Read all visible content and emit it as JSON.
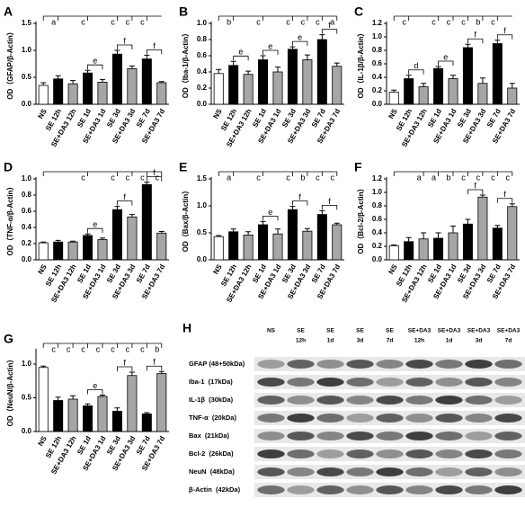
{
  "chart_data": [
    {
      "type": "bar",
      "panel": "A",
      "ylabel": "OD（GFAP/β-Actin）",
      "categories": [
        "NS",
        "SE 12h",
        "SE+DA3 12h",
        "SE 1d",
        "SE+DA3 1d",
        "SE 3d",
        "SE+DA3 3d",
        "SE 7d",
        "SE+DA3 7d"
      ],
      "values": [
        0.35,
        0.47,
        0.38,
        0.58,
        0.41,
        0.93,
        0.66,
        0.84,
        0.4
      ],
      "errors": [
        0.05,
        0.06,
        0.06,
        0.05,
        0.05,
        0.07,
        0.05,
        0.07,
        0.02
      ],
      "colors": [
        "#ffffff",
        "#000000",
        "#a6a6a6",
        "#000000",
        "#a6a6a6",
        "#000000",
        "#a6a6a6",
        "#000000",
        "#a6a6a6"
      ],
      "ylim": [
        0,
        1.5
      ],
      "yticks": [
        {
          "value": 0,
          "label": "0.0"
        },
        0.5,
        {
          "value": 1,
          "label": "1.0"
        },
        1.5
      ],
      "letters": [
        null,
        "a",
        null,
        "c",
        null,
        "c",
        "c",
        "c",
        null
      ],
      "brackets": [
        {
          "from": 3,
          "to": 4,
          "label": "e"
        },
        {
          "from": 5,
          "to": 6,
          "label": "f"
        },
        {
          "from": 7,
          "to": 8,
          "label": "f"
        }
      ]
    },
    {
      "type": "bar",
      "panel": "B",
      "ylabel": "OD（Iba-1/β-Actin）",
      "categories": [
        "NS",
        "SE 12h",
        "SE+DA3 12h",
        "SE 1d",
        "SE+DA3 1d",
        "SE 3d",
        "SE+DA3 3d",
        "SE 7d",
        "SE+DA3 7d"
      ],
      "values": [
        0.38,
        0.48,
        0.37,
        0.55,
        0.4,
        0.68,
        0.55,
        0.8,
        0.47
      ],
      "errors": [
        0.05,
        0.05,
        0.04,
        0.05,
        0.06,
        0.03,
        0.06,
        0.06,
        0.04
      ],
      "colors": [
        "#ffffff",
        "#000000",
        "#a6a6a6",
        "#000000",
        "#a6a6a6",
        "#000000",
        "#a6a6a6",
        "#000000",
        "#a6a6a6"
      ],
      "ylim": [
        0,
        1
      ],
      "yticks": [
        {
          "value": 0,
          "label": "0.0"
        },
        0.2,
        0.4,
        0.6,
        0.8,
        {
          "value": 1,
          "label": "1.0"
        }
      ],
      "letters": [
        null,
        "b",
        null,
        "c",
        null,
        "c",
        "c",
        "c",
        "a"
      ],
      "brackets": [
        {
          "from": 1,
          "to": 2,
          "label": "e"
        },
        {
          "from": 3,
          "to": 4,
          "label": "e"
        },
        {
          "from": 5,
          "to": 6,
          "label": "e"
        },
        {
          "from": 7,
          "to": 8,
          "label": "f"
        }
      ]
    },
    {
      "type": "bar",
      "panel": "C",
      "ylabel": "OD（IL-1β/β-Actin）",
      "categories": [
        "NS",
        "SE 12h",
        "SE+DA3 12h",
        "SE 1d",
        "SE+DA3 1d",
        "SE 3d",
        "SE+DA3 3d",
        "SE 7d",
        "SE+DA3 7d"
      ],
      "values": [
        0.18,
        0.38,
        0.26,
        0.53,
        0.38,
        0.84,
        0.31,
        0.9,
        0.24
      ],
      "errors": [
        0.03,
        0.05,
        0.05,
        0.03,
        0.05,
        0.05,
        0.08,
        0.05,
        0.07
      ],
      "colors": [
        "#ffffff",
        "#000000",
        "#a6a6a6",
        "#000000",
        "#a6a6a6",
        "#000000",
        "#a6a6a6",
        "#000000",
        "#a6a6a6"
      ],
      "ylim": [
        0,
        1.2
      ],
      "yticks": [
        {
          "value": 0,
          "label": "0.0"
        },
        0.2,
        0.4,
        0.6,
        0.8,
        {
          "value": 1,
          "label": "1.0"
        },
        1.2
      ],
      "letters": [
        null,
        "c",
        null,
        "c",
        "c",
        "c",
        "b",
        "c",
        null
      ],
      "brackets": [
        {
          "from": 1,
          "to": 2,
          "label": "d"
        },
        {
          "from": 3,
          "to": 4,
          "label": "e"
        },
        {
          "from": 5,
          "to": 6,
          "label": "f"
        },
        {
          "from": 7,
          "to": 8,
          "label": "f"
        }
      ]
    },
    {
      "type": "bar",
      "panel": "D",
      "ylabel": "OD（TNF-α/β-Actin）",
      "categories": [
        "NS",
        "SE 12h",
        "SE+DA3 12h",
        "SE 1d",
        "SE+DA3 1d",
        "SE 3d",
        "SE+DA3 3d",
        "SE 7d",
        "SE+DA3 7d"
      ],
      "values": [
        0.21,
        0.22,
        0.22,
        0.3,
        0.25,
        0.62,
        0.53,
        0.93,
        0.33
      ],
      "errors": [
        0.01,
        0.02,
        0.01,
        0.02,
        0.02,
        0.04,
        0.03,
        0.03,
        0.02
      ],
      "colors": [
        "#ffffff",
        "#000000",
        "#a6a6a6",
        "#000000",
        "#a6a6a6",
        "#000000",
        "#a6a6a6",
        "#000000",
        "#a6a6a6"
      ],
      "ylim": [
        0,
        1
      ],
      "yticks": [
        {
          "value": 0,
          "label": "0.0"
        },
        0.2,
        0.4,
        0.6,
        0.8,
        {
          "value": 1,
          "label": "1.0"
        }
      ],
      "letters": [
        null,
        null,
        null,
        "c",
        null,
        "c",
        "c",
        "c",
        "c"
      ],
      "brackets": [
        {
          "from": 3,
          "to": 4,
          "label": "e"
        },
        {
          "from": 5,
          "to": 6,
          "label": "f"
        },
        {
          "from": 7,
          "to": 8,
          "label": "f"
        }
      ]
    },
    {
      "type": "bar",
      "panel": "E",
      "ylabel": "OD（Bax/β-Actin）",
      "categories": [
        "NS",
        "SE 12h",
        "SE+DA3 12h",
        "SE 1d",
        "SE+DA3 1d",
        "SE 3d",
        "SE+DA3 3d",
        "SE 7d",
        "SE+DA3 7d"
      ],
      "values": [
        0.43,
        0.52,
        0.46,
        0.65,
        0.48,
        0.93,
        0.53,
        0.84,
        0.65
      ],
      "errors": [
        0.02,
        0.05,
        0.06,
        0.06,
        0.09,
        0.06,
        0.05,
        0.07,
        0.03
      ],
      "colors": [
        "#ffffff",
        "#000000",
        "#a6a6a6",
        "#000000",
        "#a6a6a6",
        "#000000",
        "#a6a6a6",
        "#000000",
        "#a6a6a6"
      ],
      "ylim": [
        0,
        1.5
      ],
      "yticks": [
        {
          "value": 0,
          "label": "0.0"
        },
        0.5,
        {
          "value": 1,
          "label": "1.0"
        },
        1.5
      ],
      "letters": [
        null,
        "a",
        null,
        "c",
        null,
        "c",
        "b",
        "c",
        "c"
      ],
      "brackets": [
        {
          "from": 3,
          "to": 4,
          "label": "e"
        },
        {
          "from": 5,
          "to": 6,
          "label": "f"
        },
        {
          "from": 7,
          "to": 8,
          "label": "f"
        }
      ]
    },
    {
      "type": "bar",
      "panel": "F",
      "ylabel": "OD（Bcl-2/β-Actin）",
      "categories": [
        "NS",
        "SE 12h",
        "SE+DA3 12h",
        "SE 1d",
        "SE+DA3 1d",
        "SE 3d",
        "SE+DA3 3d",
        "SE 7d",
        "SE+DA3 7d"
      ],
      "values": [
        0.21,
        0.27,
        0.31,
        0.32,
        0.4,
        0.53,
        0.93,
        0.47,
        0.79
      ],
      "errors": [
        0.01,
        0.06,
        0.09,
        0.08,
        0.1,
        0.07,
        0.03,
        0.04,
        0.04
      ],
      "colors": [
        "#ffffff",
        "#000000",
        "#a6a6a6",
        "#000000",
        "#a6a6a6",
        "#000000",
        "#a6a6a6",
        "#000000",
        "#a6a6a6"
      ],
      "ylim": [
        0,
        1.2
      ],
      "yticks": [
        {
          "value": 0,
          "label": "0.0"
        },
        0.2,
        0.4,
        0.6,
        0.8,
        {
          "value": 1,
          "label": "1.0"
        },
        1.2
      ],
      "letters": [
        null,
        null,
        "a",
        "a",
        "b",
        "c",
        "c",
        "c",
        "c"
      ],
      "brackets": [
        {
          "from": 5,
          "to": 6,
          "label": "f"
        },
        {
          "from": 7,
          "to": 8,
          "label": "f"
        }
      ]
    },
    {
      "type": "bar",
      "panel": "G",
      "ylabel": "OD（NeuN/β-Actin）",
      "categories": [
        "NS",
        "SE 12h",
        "SE+DA3 12h",
        "SE 1d",
        "SE+DA3 1d",
        "SE 3d",
        "SE+DA3 3d",
        "SE 7d",
        "SE+DA3 7d"
      ],
      "values": [
        0.95,
        0.46,
        0.48,
        0.38,
        0.52,
        0.3,
        0.83,
        0.26,
        0.86
      ],
      "errors": [
        0.02,
        0.05,
        0.05,
        0.03,
        0.02,
        0.05,
        0.05,
        0.02,
        0.03
      ],
      "colors": [
        "#ffffff",
        "#000000",
        "#a6a6a6",
        "#000000",
        "#a6a6a6",
        "#000000",
        "#a6a6a6",
        "#000000",
        "#a6a6a6"
      ],
      "ylim": [
        0,
        1.2
      ],
      "yticks": [
        {
          "value": 0,
          "label": "0.0"
        },
        0.5,
        {
          "value": 1,
          "label": "1.0"
        }
      ],
      "letters": [
        null,
        "c",
        "c",
        "c",
        "c",
        "c",
        "c",
        "c",
        "b"
      ],
      "brackets": [
        {
          "from": 3,
          "to": 4,
          "label": "e"
        },
        {
          "from": 5,
          "to": 6,
          "label": "f"
        },
        {
          "from": 7,
          "to": 8,
          "label": "f"
        }
      ]
    }
  ],
  "blot": {
    "panel": "H",
    "columns": [
      [
        "NS"
      ],
      [
        "SE",
        "12h"
      ],
      [
        "SE",
        "1d"
      ],
      [
        "SE",
        "3d"
      ],
      [
        "SE",
        "7d"
      ],
      [
        "SE+DA3",
        "12h"
      ],
      [
        "SE+DA3",
        "1d"
      ],
      [
        "SE+DA3",
        "3d"
      ],
      [
        "SE+DA3",
        "7d"
      ]
    ],
    "rows": [
      "GFAP (48+50kDa)",
      "Iba-1  (17kDa)",
      "IL-1β  (30kDa)",
      "TNF-α  (20kDa)",
      "Bax  (21kDa)",
      "Bcl-2  (26kDa)",
      "NeuN  (48kDa)",
      "β-Actin  (42kDa)"
    ]
  }
}
